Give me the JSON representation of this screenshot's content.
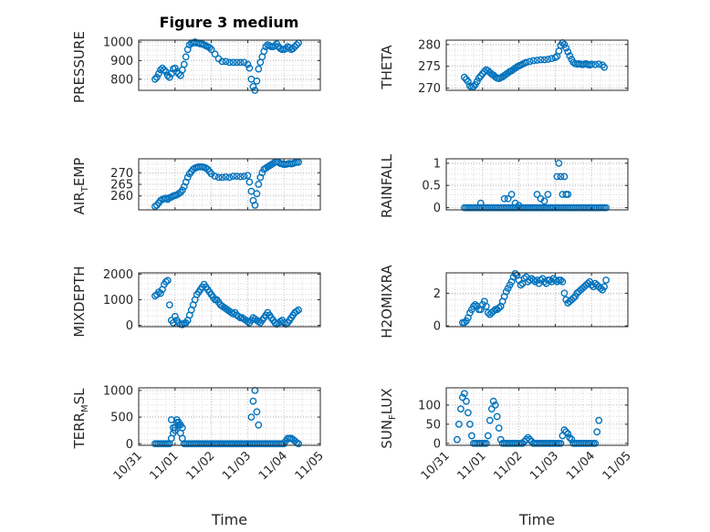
{
  "figure": {
    "title": "Figure 3 medium"
  },
  "chart_data": [
    {
      "type": "scatter",
      "ylabel": "PRESSURE",
      "ylim": [
        740,
        1010
      ],
      "yticks": [
        800,
        900,
        1000
      ],
      "xlim": [
        0,
        5
      ],
      "grid": true,
      "marker_color": "#0072BD",
      "x": [
        0.45,
        0.5,
        0.55,
        0.6,
        0.65,
        0.7,
        0.75,
        0.8,
        0.85,
        0.9,
        0.95,
        1.0,
        1.05,
        1.1,
        1.15,
        1.2,
        1.25,
        1.3,
        1.35,
        1.4,
        1.45,
        1.5,
        1.55,
        1.6,
        1.65,
        1.7,
        1.75,
        1.8,
        1.85,
        1.9,
        1.95,
        2.0,
        2.1,
        2.2,
        2.3,
        2.4,
        2.5,
        2.6,
        2.7,
        2.8,
        2.9,
        3.0,
        3.05,
        3.1,
        3.15,
        3.2,
        3.25,
        3.3,
        3.35,
        3.4,
        3.45,
        3.5,
        3.55,
        3.6,
        3.65,
        3.7,
        3.75,
        3.8,
        3.85,
        3.9,
        3.95,
        4.0,
        4.05,
        4.1,
        4.15,
        4.2,
        4.25,
        4.3,
        4.35,
        4.4
      ],
      "y": [
        800,
        810,
        830,
        850,
        860,
        850,
        840,
        820,
        810,
        830,
        855,
        860,
        840,
        830,
        820,
        850,
        880,
        920,
        960,
        985,
        995,
        995,
        1000,
        995,
        995,
        990,
        990,
        985,
        980,
        975,
        970,
        960,
        935,
        910,
        895,
        895,
        890,
        890,
        890,
        890,
        890,
        880,
        860,
        800,
        760,
        740,
        790,
        855,
        890,
        920,
        950,
        975,
        985,
        980,
        975,
        975,
        980,
        990,
        975,
        965,
        960,
        960,
        965,
        975,
        970,
        960,
        965,
        975,
        985,
        995
      ]
    },
    {
      "type": "scatter",
      "ylabel": "THETA",
      "ylim": [
        269.5,
        281
      ],
      "yticks": [
        270,
        275,
        280
      ],
      "xlim": [
        0,
        5
      ],
      "grid": true,
      "marker_color": "#0072BD",
      "x": [
        0.5,
        0.55,
        0.6,
        0.65,
        0.7,
        0.75,
        0.8,
        0.85,
        0.9,
        0.95,
        1.0,
        1.05,
        1.1,
        1.15,
        1.2,
        1.25,
        1.3,
        1.35,
        1.4,
        1.45,
        1.5,
        1.55,
        1.6,
        1.65,
        1.7,
        1.75,
        1.8,
        1.85,
        1.9,
        1.95,
        2.0,
        2.05,
        2.1,
        2.15,
        2.2,
        2.3,
        2.4,
        2.5,
        2.6,
        2.7,
        2.8,
        2.9,
        3.0,
        3.05,
        3.1,
        3.15,
        3.2,
        3.25,
        3.3,
        3.35,
        3.4,
        3.45,
        3.5,
        3.55,
        3.6,
        3.65,
        3.7,
        3.75,
        3.8,
        3.85,
        3.9,
        3.95,
        4.0,
        4.1,
        4.2,
        4.3,
        4.35
      ],
      "y": [
        272.5,
        272,
        271.5,
        270.5,
        270.2,
        270.4,
        270.8,
        271.5,
        272.3,
        272.8,
        273.3,
        273.8,
        274.2,
        274.0,
        273.6,
        273.2,
        273.0,
        272.6,
        272.3,
        272.2,
        272.4,
        272.6,
        272.9,
        273.2,
        273.5,
        273.8,
        274.0,
        274.3,
        274.6,
        274.9,
        275.1,
        275.3,
        275.5,
        275.7,
        275.9,
        276.1,
        276.3,
        276.4,
        276.5,
        276.5,
        276.6,
        276.8,
        277.0,
        277.3,
        278.5,
        279.8,
        280.4,
        280.0,
        279.2,
        278.3,
        277.4,
        276.6,
        275.9,
        275.6,
        275.5,
        275.6,
        275.5,
        275.4,
        275.5,
        275.6,
        275.4,
        275.3,
        275.5,
        275.4,
        275.5,
        275.3,
        274.8
      ]
    },
    {
      "type": "scatter",
      "ylabel": "AIR_TEMP",
      "ylim": [
        254,
        276
      ],
      "yticks": [
        260,
        265,
        270
      ],
      "xlim": [
        0,
        5
      ],
      "grid": true,
      "marker_color": "#0072BD",
      "x": [
        0.45,
        0.5,
        0.55,
        0.6,
        0.65,
        0.7,
        0.75,
        0.8,
        0.85,
        0.9,
        0.95,
        1.0,
        1.05,
        1.1,
        1.15,
        1.2,
        1.25,
        1.3,
        1.35,
        1.4,
        1.45,
        1.5,
        1.55,
        1.6,
        1.65,
        1.7,
        1.75,
        1.8,
        1.85,
        1.9,
        1.95,
        2.0,
        2.1,
        2.2,
        2.3,
        2.4,
        2.5,
        2.6,
        2.7,
        2.8,
        2.9,
        3.0,
        3.05,
        3.1,
        3.15,
        3.2,
        3.25,
        3.3,
        3.35,
        3.4,
        3.45,
        3.5,
        3.55,
        3.6,
        3.65,
        3.7,
        3.75,
        3.8,
        3.85,
        3.9,
        3.95,
        4.0,
        4.05,
        4.1,
        4.15,
        4.2,
        4.25,
        4.3,
        4.35,
        4.4
      ],
      "y": [
        255.5,
        256,
        257,
        258,
        258.5,
        258.8,
        259,
        258.5,
        259.2,
        259.5,
        260,
        260.2,
        260.5,
        261,
        261.5,
        262.5,
        264,
        266,
        268,
        269.5,
        270.5,
        271.5,
        272,
        272.3,
        272.5,
        272.5,
        272.5,
        272.3,
        272,
        271.5,
        270.5,
        269.5,
        268.5,
        268,
        268,
        268.2,
        268,
        268.5,
        268.5,
        268.3,
        268.5,
        268.8,
        266,
        262,
        258,
        256,
        261,
        265,
        268,
        270,
        271.5,
        272,
        272.5,
        273,
        273.5,
        274,
        274.5,
        274.7,
        274.5,
        274,
        273.8,
        273.5,
        273.6,
        273.8,
        274,
        273.8,
        274,
        274.3,
        274.5,
        274.5
      ]
    },
    {
      "type": "scatter",
      "ylabel": "RAINFALL",
      "ylim": [
        -0.05,
        1.1
      ],
      "yticks": [
        0,
        0.5,
        1
      ],
      "xlim": [
        0,
        5
      ],
      "grid": true,
      "marker_color": "#0072BD",
      "x": [
        0.5,
        0.55,
        0.6,
        0.65,
        0.7,
        0.75,
        0.8,
        0.85,
        0.9,
        0.95,
        1.0,
        1.05,
        1.1,
        1.15,
        1.2,
        1.25,
        1.3,
        1.35,
        1.4,
        1.45,
        1.5,
        1.55,
        1.6,
        1.65,
        1.7,
        1.75,
        1.8,
        1.85,
        1.9,
        1.95,
        2.0,
        2.05,
        2.1,
        2.15,
        2.2,
        2.25,
        2.3,
        2.35,
        2.4,
        2.45,
        2.5,
        2.55,
        2.6,
        2.65,
        2.7,
        2.75,
        2.8,
        2.85,
        2.9,
        2.95,
        3.0,
        3.05,
        3.1,
        3.15,
        3.2,
        3.25,
        3.3,
        3.35,
        3.4,
        3.45,
        3.5,
        3.55,
        3.6,
        3.65,
        3.7,
        3.75,
        3.8,
        3.85,
        3.9,
        3.95,
        4.0,
        4.05,
        4.1,
        4.15,
        4.2,
        4.25,
        4.3,
        4.35,
        4.4,
        0.95,
        1.6,
        1.7,
        1.8,
        1.9,
        2.0,
        2.5,
        2.6,
        2.7,
        2.8,
        3.05,
        3.1,
        3.15,
        3.2,
        3.25,
        3.3,
        3.35
      ],
      "y": [
        0,
        0,
        0,
        0,
        0,
        0,
        0,
        0,
        0,
        0,
        0,
        0,
        0,
        0,
        0,
        0,
        0,
        0,
        0,
        0,
        0,
        0,
        0,
        0,
        0,
        0,
        0,
        0,
        0,
        0,
        0,
        0,
        0,
        0,
        0,
        0,
        0,
        0,
        0,
        0,
        0,
        0,
        0,
        0,
        0,
        0,
        0,
        0,
        0,
        0,
        0,
        0,
        0,
        0,
        0,
        0,
        0,
        0,
        0,
        0,
        0,
        0,
        0,
        0,
        0,
        0,
        0,
        0,
        0,
        0,
        0,
        0,
        0,
        0,
        0,
        0,
        0,
        0,
        0,
        0.1,
        0.2,
        0.2,
        0.3,
        0.1,
        0.05,
        0.3,
        0.2,
        0.15,
        0.3,
        0.7,
        1.0,
        0.7,
        0.3,
        0.7,
        0.3,
        0.3
      ]
    },
    {
      "type": "scatter",
      "ylabel": "MIXDEPTH",
      "ylim": [
        -50,
        2050
      ],
      "yticks": [
        0,
        1000,
        2000
      ],
      "xlim": [
        0,
        5
      ],
      "grid": true,
      "marker_color": "#0072BD",
      "x": [
        0.45,
        0.5,
        0.55,
        0.6,
        0.65,
        0.7,
        0.75,
        0.8,
        0.85,
        0.9,
        0.95,
        1.0,
        1.05,
        1.1,
        1.15,
        1.2,
        1.25,
        1.3,
        1.35,
        1.4,
        1.45,
        1.5,
        1.55,
        1.6,
        1.65,
        1.7,
        1.75,
        1.8,
        1.85,
        1.9,
        1.95,
        2.0,
        2.05,
        2.1,
        2.15,
        2.2,
        2.25,
        2.3,
        2.35,
        2.4,
        2.45,
        2.5,
        2.55,
        2.6,
        2.65,
        2.7,
        2.75,
        2.8,
        2.85,
        2.9,
        2.95,
        3.0,
        3.05,
        3.1,
        3.15,
        3.2,
        3.25,
        3.3,
        3.35,
        3.4,
        3.45,
        3.5,
        3.55,
        3.6,
        3.65,
        3.7,
        3.75,
        3.8,
        3.85,
        3.9,
        3.95,
        4.0,
        4.05,
        4.1,
        4.15,
        4.2,
        4.25,
        4.3,
        4.35,
        4.4
      ],
      "y": [
        1150,
        1200,
        1300,
        1250,
        1400,
        1600,
        1700,
        1750,
        800,
        200,
        100,
        350,
        200,
        100,
        50,
        30,
        80,
        100,
        200,
        400,
        600,
        800,
        1000,
        1200,
        1300,
        1400,
        1500,
        1600,
        1500,
        1400,
        1300,
        1200,
        1100,
        1000,
        1000,
        900,
        800,
        750,
        700,
        650,
        600,
        550,
        500,
        450,
        500,
        400,
        350,
        300,
        300,
        250,
        200,
        150,
        100,
        200,
        300,
        250,
        200,
        150,
        100,
        200,
        300,
        400,
        500,
        400,
        300,
        200,
        100,
        50,
        100,
        150,
        200,
        100,
        50,
        100,
        200,
        300,
        400,
        500,
        550,
        600
      ]
    },
    {
      "type": "scatter",
      "ylabel": "H2OMIXRA",
      "ylim": [
        -0.05,
        3.25
      ],
      "yticks": [
        0,
        2
      ],
      "xlim": [
        0,
        5
      ],
      "grid": true,
      "marker_color": "#0072BD",
      "x": [
        0.45,
        0.5,
        0.55,
        0.6,
        0.65,
        0.7,
        0.75,
        0.8,
        0.85,
        0.9,
        0.95,
        1.0,
        1.05,
        1.1,
        1.15,
        1.2,
        1.25,
        1.3,
        1.35,
        1.4,
        1.45,
        1.5,
        1.55,
        1.6,
        1.65,
        1.7,
        1.75,
        1.8,
        1.85,
        1.9,
        1.95,
        2.0,
        2.05,
        2.1,
        2.15,
        2.2,
        2.25,
        2.3,
        2.35,
        2.4,
        2.45,
        2.5,
        2.55,
        2.6,
        2.65,
        2.7,
        2.75,
        2.8,
        2.85,
        2.9,
        2.95,
        3.0,
        3.05,
        3.1,
        3.15,
        3.2,
        3.25,
        3.3,
        3.35,
        3.4,
        3.45,
        3.5,
        3.55,
        3.6,
        3.65,
        3.7,
        3.75,
        3.8,
        3.85,
        3.9,
        3.95,
        4.0,
        4.05,
        4.1,
        4.15,
        4.2,
        4.25,
        4.3,
        4.35,
        4.4
      ],
      "y": [
        0.2,
        0.2,
        0.3,
        0.5,
        0.8,
        1.0,
        1.2,
        1.3,
        1.2,
        1.0,
        1.0,
        1.3,
        1.5,
        1.2,
        0.8,
        0.7,
        0.8,
        0.9,
        1.0,
        1.0,
        1.1,
        1.2,
        1.5,
        1.8,
        2.1,
        2.3,
        2.5,
        2.7,
        3.0,
        3.2,
        3.1,
        2.8,
        2.5,
        2.6,
        2.9,
        3.0,
        2.7,
        2.8,
        2.9,
        2.8,
        2.7,
        2.8,
        2.6,
        2.8,
        2.9,
        2.7,
        2.6,
        2.8,
        2.8,
        2.7,
        2.9,
        2.8,
        2.7,
        2.8,
        2.8,
        2.7,
        2.0,
        1.6,
        1.4,
        1.5,
        1.6,
        1.7,
        1.8,
        2.0,
        2.1,
        2.2,
        2.3,
        2.4,
        2.5,
        2.6,
        2.7,
        2.5,
        2.4,
        2.6,
        2.5,
        2.4,
        2.3,
        2.2,
        2.4,
        2.8
      ]
    },
    {
      "type": "scatter",
      "ylabel": "TERR_MSL",
      "ylim": [
        -30,
        1050
      ],
      "yticks": [
        0,
        500,
        1000
      ],
      "xlim": [
        0,
        5
      ],
      "xticklabels": [
        "10/31",
        "11/01",
        "11/02",
        "11/03",
        "11/04",
        "11/05"
      ],
      "xlabel": "Time",
      "grid": true,
      "marker_color": "#0072BD",
      "x": [
        0.45,
        0.5,
        0.55,
        0.6,
        0.65,
        0.7,
        0.75,
        0.8,
        0.85,
        0.9,
        0.95,
        1.0,
        1.05,
        1.1,
        1.15,
        1.2,
        1.25,
        1.3,
        1.35,
        1.4,
        1.45,
        1.5,
        1.55,
        1.6,
        1.65,
        1.7,
        1.75,
        1.8,
        1.85,
        1.9,
        1.95,
        2.0,
        2.05,
        2.1,
        2.15,
        2.2,
        2.25,
        2.3,
        2.35,
        2.4,
        2.45,
        2.5,
        2.55,
        2.6,
        2.65,
        2.7,
        2.75,
        2.8,
        2.85,
        2.9,
        2.95,
        3.0,
        3.05,
        3.1,
        3.15,
        3.2,
        3.25,
        3.3,
        3.35,
        3.4,
        3.45,
        3.5,
        3.55,
        3.6,
        3.65,
        3.7,
        3.75,
        3.8,
        3.85,
        3.9,
        3.95,
        4.0,
        4.05,
        4.1,
        4.15,
        4.2,
        4.25,
        4.3,
        4.35,
        4.4,
        0.9,
        0.95,
        1.0,
        1.05,
        1.1,
        1.15,
        1.2,
        3.1,
        3.15,
        3.2,
        3.25,
        3.3
      ],
      "y": [
        0,
        0,
        0,
        0,
        0,
        0,
        0,
        0,
        0,
        100,
        200,
        300,
        400,
        350,
        200,
        100,
        0,
        0,
        0,
        0,
        0,
        0,
        0,
        0,
        0,
        0,
        0,
        0,
        0,
        0,
        0,
        0,
        0,
        0,
        0,
        0,
        0,
        0,
        0,
        0,
        0,
        0,
        0,
        0,
        0,
        0,
        0,
        0,
        0,
        0,
        0,
        0,
        0,
        0,
        0,
        0,
        0,
        0,
        0,
        0,
        0,
        0,
        0,
        0,
        0,
        0,
        0,
        0,
        0,
        0,
        0,
        0,
        50,
        100,
        100,
        100,
        80,
        50,
        20,
        0,
        450,
        300,
        250,
        450,
        400,
        350,
        300,
        500,
        800,
        1000,
        600,
        350
      ]
    },
    {
      "type": "scatter",
      "ylabel": "SUN_FLUX",
      "ylim": [
        -5,
        145
      ],
      "yticks": [
        0,
        50,
        100
      ],
      "xlim": [
        0,
        5
      ],
      "xticklabels": [
        "10/31",
        "11/01",
        "11/02",
        "11/03",
        "11/04",
        "11/05"
      ],
      "xlabel": "Time",
      "grid": true,
      "marker_color": "#0072BD",
      "x": [
        0.3,
        0.35,
        0.4,
        0.45,
        0.5,
        0.55,
        0.6,
        0.65,
        0.7,
        0.75,
        0.8,
        0.85,
        0.9,
        0.95,
        1.0,
        1.05,
        1.1,
        1.15,
        1.2,
        1.25,
        1.3,
        1.35,
        1.4,
        1.45,
        1.5,
        1.55,
        1.6,
        1.65,
        1.7,
        1.75,
        1.8,
        1.85,
        1.9,
        1.95,
        2.0,
        2.05,
        2.1,
        2.15,
        2.2,
        2.25,
        2.3,
        2.35,
        2.4,
        2.45,
        2.5,
        2.55,
        2.6,
        2.65,
        2.7,
        2.75,
        2.8,
        2.85,
        2.9,
        2.95,
        3.0,
        3.05,
        3.1,
        3.15,
        3.2,
        3.25,
        3.3,
        3.35,
        3.4,
        3.45,
        3.5,
        3.55,
        3.6,
        3.65,
        3.7,
        3.75,
        3.8,
        3.85,
        3.9,
        3.95,
        4.0,
        4.05,
        4.1,
        4.15,
        4.2
      ],
      "y": [
        10,
        50,
        90,
        120,
        130,
        110,
        80,
        50,
        20,
        0,
        0,
        0,
        0,
        0,
        0,
        0,
        0,
        20,
        60,
        90,
        110,
        100,
        70,
        40,
        10,
        0,
        0,
        0,
        0,
        0,
        0,
        0,
        0,
        0,
        0,
        0,
        0,
        5,
        10,
        15,
        10,
        5,
        0,
        0,
        0,
        0,
        0,
        0,
        0,
        0,
        0,
        0,
        0,
        0,
        0,
        0,
        0,
        0,
        20,
        35,
        30,
        25,
        15,
        10,
        0,
        0,
        0,
        0,
        0,
        0,
        0,
        0,
        0,
        0,
        0,
        0,
        0,
        30,
        60
      ]
    }
  ]
}
